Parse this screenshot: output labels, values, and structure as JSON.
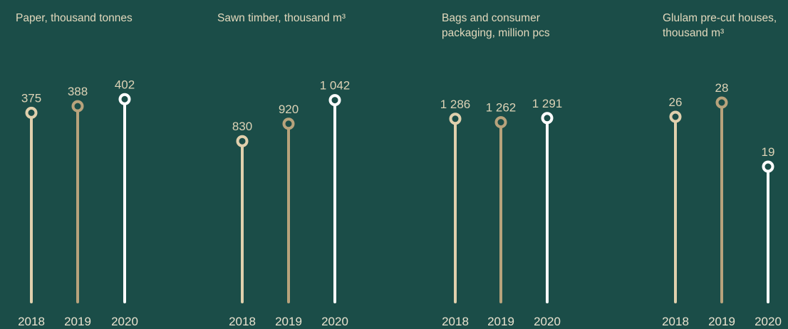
{
  "colors": {
    "background": "#1b4d48",
    "title": "#e3d9bd",
    "label": "#ddd3b6",
    "year": "#e8e2cf",
    "series": {
      "2018": "#e0d0ad",
      "2019": "#b8a37c",
      "2020": "#ffffff"
    }
  },
  "chart_data": [
    {
      "type": "lollipop",
      "title_lines": [
        "Paper, thousand tonnes"
      ],
      "categories": [
        "2018",
        "2019",
        "2020"
      ],
      "values": [
        375,
        388,
        402
      ],
      "value_labels": [
        "375",
        "388",
        "402"
      ],
      "ylim": [
        0,
        480
      ]
    },
    {
      "type": "lollipop",
      "title_lines": [
        "Sawn timber, thousand m³"
      ],
      "categories": [
        "2018",
        "2019",
        "2020"
      ],
      "values": [
        830,
        920,
        1042
      ],
      "value_labels": [
        "830",
        "920",
        "1 042"
      ],
      "ylim": [
        0,
        1250
      ]
    },
    {
      "type": "lollipop",
      "title_lines": [
        "Bags and consumer",
        "packaging, million pcs"
      ],
      "categories": [
        "2018",
        "2019",
        "2020"
      ],
      "values": [
        1286,
        1262,
        1291
      ],
      "value_labels": [
        "1 286",
        "1 262",
        "1 291"
      ],
      "ylim": [
        0,
        1700
      ]
    },
    {
      "type": "lollipop",
      "title_lines": [
        "Glulam pre-cut houses,",
        "thousand m³"
      ],
      "categories": [
        "2018",
        "2019",
        "2020"
      ],
      "values": [
        26,
        28,
        19
      ],
      "value_labels": [
        "26",
        "28",
        "19"
      ],
      "ylim": [
        0,
        34
      ]
    }
  ]
}
